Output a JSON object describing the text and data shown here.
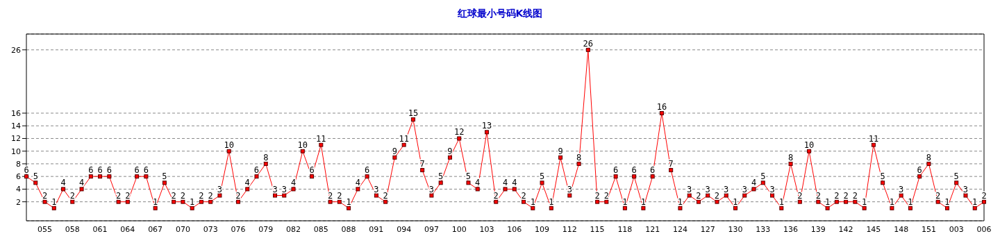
{
  "chart_data": {
    "type": "line",
    "title": "红球最小号码K线图",
    "categories": [
      null,
      null,
      "055",
      null,
      null,
      "058",
      null,
      null,
      "061",
      null,
      null,
      "064",
      null,
      null,
      "067",
      null,
      null,
      "070",
      null,
      null,
      "073",
      null,
      null,
      "076",
      null,
      null,
      "079",
      null,
      null,
      "082",
      null,
      null,
      "085",
      null,
      null,
      "088",
      null,
      null,
      "091",
      null,
      null,
      "094",
      null,
      null,
      "097",
      null,
      null,
      "100",
      null,
      null,
      "103",
      null,
      null,
      "106",
      null,
      null,
      "109",
      null,
      null,
      "112",
      null,
      null,
      "115",
      null,
      null,
      "118",
      null,
      null,
      "121",
      null,
      null,
      "124",
      null,
      null,
      "127",
      null,
      null,
      "130",
      null,
      null,
      "133",
      null,
      null,
      "136",
      null,
      null,
      "139",
      null,
      null,
      "142",
      null,
      null,
      "145",
      null,
      null,
      "148",
      null,
      null,
      "151",
      null,
      null,
      "003",
      null,
      null,
      "006"
    ],
    "series": [
      {
        "color": "#ff0000",
        "values": [
          6,
          5,
          2,
          1,
          4,
          2,
          4,
          6,
          6,
          6,
          2,
          2,
          6,
          6,
          1,
          5,
          2,
          2,
          1,
          2,
          2,
          3,
          10,
          2,
          4,
          6,
          8,
          3,
          3,
          4,
          10,
          6,
          11,
          2,
          2,
          1,
          4,
          6,
          3,
          2,
          9,
          11,
          15,
          7,
          3,
          5,
          9,
          12,
          5,
          4,
          13,
          2,
          4,
          4,
          2,
          1,
          5,
          1,
          9,
          3,
          8,
          26,
          2,
          2,
          6,
          1,
          6,
          1,
          6,
          16,
          7,
          1,
          3,
          2,
          3,
          2,
          3,
          1,
          3,
          4,
          5,
          3,
          1,
          8,
          2,
          10,
          2,
          1,
          2,
          2,
          2,
          1,
          11,
          5,
          1,
          3,
          1,
          6,
          8,
          2,
          1,
          5,
          3,
          1,
          2
        ]
      }
    ],
    "ylim": [
      -1,
      28.5
    ],
    "yticks": [
      2,
      4,
      6,
      8,
      10,
      12,
      14,
      16,
      26
    ],
    "grid": "y",
    "marker": "square",
    "line_style": "solid",
    "data_labels": true,
    "legend": false
  }
}
